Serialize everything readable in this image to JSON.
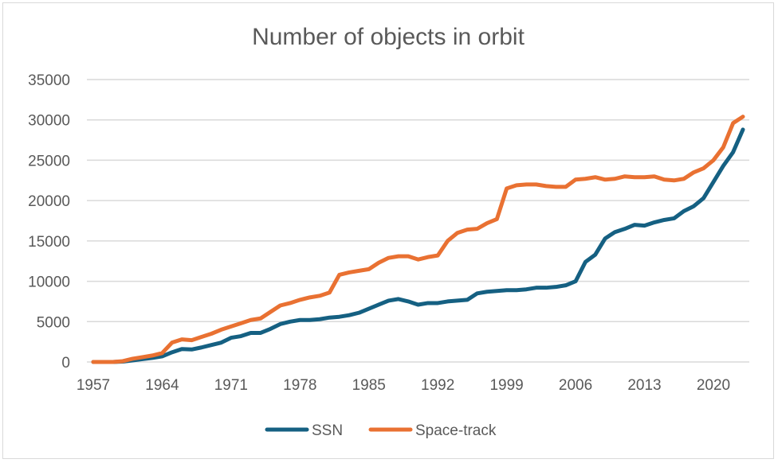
{
  "chart_data": {
    "type": "line",
    "title": "Number of objects in orbit",
    "xlabel": "",
    "ylabel": "",
    "ylim": [
      0,
      35000
    ],
    "yticks": [
      0,
      5000,
      10000,
      15000,
      20000,
      25000,
      30000,
      35000
    ],
    "xticks": [
      1957,
      1964,
      1971,
      1978,
      1985,
      1992,
      1999,
      2006,
      2013,
      2020
    ],
    "grid": true,
    "legend_position": "bottom",
    "x": [
      1957,
      1958,
      1959,
      1960,
      1961,
      1962,
      1963,
      1964,
      1965,
      1966,
      1967,
      1968,
      1969,
      1970,
      1971,
      1972,
      1973,
      1974,
      1975,
      1976,
      1977,
      1978,
      1979,
      1980,
      1981,
      1982,
      1983,
      1984,
      1985,
      1986,
      1987,
      1988,
      1989,
      1990,
      1991,
      1992,
      1993,
      1994,
      1995,
      1996,
      1997,
      1998,
      1999,
      2000,
      2001,
      2002,
      2003,
      2004,
      2005,
      2006,
      2007,
      2008,
      2009,
      2010,
      2011,
      2012,
      2013,
      2014,
      2015,
      2016,
      2017,
      2018,
      2019,
      2020,
      2021,
      2022,
      2023
    ],
    "series": [
      {
        "name": "SSN",
        "color": "#156082",
        "values": [
          0,
          0,
          0,
          50,
          200,
          350,
          500,
          700,
          1200,
          1600,
          1550,
          1800,
          2100,
          2400,
          3000,
          3200,
          3600,
          3600,
          4100,
          4700,
          5000,
          5200,
          5200,
          5300,
          5500,
          5600,
          5800,
          6100,
          6600,
          7100,
          7600,
          7800,
          7500,
          7100,
          7300,
          7300,
          7500,
          7600,
          7700,
          8500,
          8700,
          8800,
          8900,
          8900,
          9000,
          9200,
          9200,
          9300,
          9500,
          10000,
          12400,
          13300,
          15300,
          16100,
          16500,
          17000,
          16900,
          17300,
          17600,
          17800,
          18700,
          19300,
          20300,
          22300,
          24300,
          26000,
          28800
        ]
      },
      {
        "name": "Space-track",
        "color": "#E97132",
        "values": [
          0,
          0,
          0,
          100,
          400,
          600,
          800,
          1100,
          2400,
          2800,
          2700,
          3100,
          3500,
          4000,
          4400,
          4800,
          5200,
          5400,
          6200,
          7000,
          7300,
          7700,
          8000,
          8200,
          8600,
          10800,
          11100,
          11300,
          11500,
          12300,
          12900,
          13100,
          13100,
          12700,
          13000,
          13200,
          15000,
          16000,
          16400,
          16500,
          17200,
          17700,
          21500,
          21900,
          22000,
          22000,
          21800,
          21700,
          21700,
          22600,
          22700,
          22900,
          22600,
          22700,
          23000,
          22900,
          22900,
          23000,
          22600,
          22500,
          22700,
          23500,
          24000,
          25000,
          26600,
          29600,
          30400
        ]
      }
    ]
  }
}
